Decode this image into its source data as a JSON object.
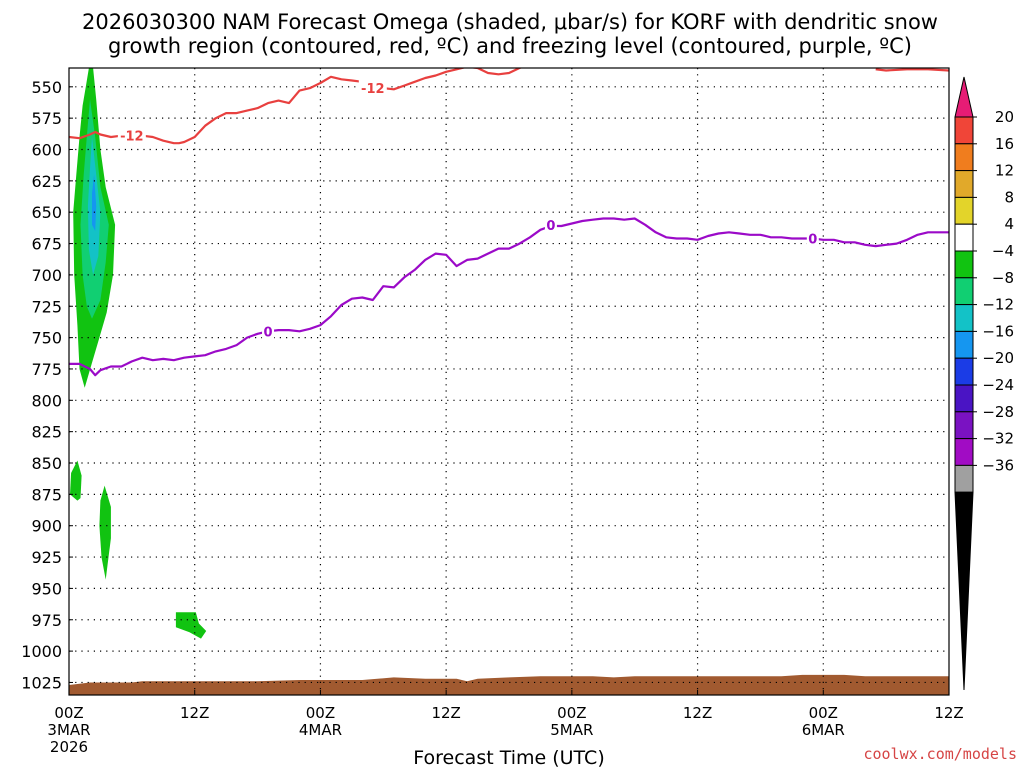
{
  "chart_data": {
    "type": "time-height contour",
    "title_line1": "2026030300 NAM Forecast Omega (shaded, μbar/s) for KORF with dendritic snow",
    "title_line2": "growth region (contoured, red, ºC) and freezing level (contoured, purple, ºC)",
    "xlabel": "Forecast Time (UTC)",
    "credit": "coolwx.com/models",
    "x_range_hours": [
      0,
      84
    ],
    "y_range_hpa": [
      535,
      1035
    ],
    "y_ticks": [
      550,
      575,
      600,
      625,
      650,
      675,
      700,
      725,
      750,
      775,
      800,
      825,
      850,
      875,
      900,
      925,
      950,
      975,
      1000,
      1025
    ],
    "x_ticks": [
      {
        "hour": 0,
        "line1": "00Z",
        "line2": "3MAR",
        "line3": "2026"
      },
      {
        "hour": 12,
        "line1": "12Z",
        "line2": "",
        "line3": ""
      },
      {
        "hour": 24,
        "line1": "00Z",
        "line2": "4MAR",
        "line3": ""
      },
      {
        "hour": 36,
        "line1": "12Z",
        "line2": "",
        "line3": ""
      },
      {
        "hour": 48,
        "line1": "00Z",
        "line2": "5MAR",
        "line3": ""
      },
      {
        "hour": 60,
        "line1": "12Z",
        "line2": "",
        "line3": ""
      },
      {
        "hour": 72,
        "line1": "00Z",
        "line2": "6MAR",
        "line3": ""
      },
      {
        "hour": 84,
        "line1": "12Z",
        "line2": "",
        "line3": ""
      }
    ],
    "grid": "dotted",
    "colorbar": {
      "levels": [
        20,
        16,
        12,
        8,
        4,
        -4,
        -8,
        -12,
        -16,
        -20,
        -24,
        -28,
        -32,
        -36
      ],
      "colors": [
        "#e61c75",
        "#f04538",
        "#f07d1e",
        "#e1a92a",
        "#e3d42a",
        "#ffffff",
        "#11c311",
        "#11cf72",
        "#13c2c7",
        "#1596f0",
        "#1b3ce6",
        "#4a14c4",
        "#7a12c2",
        "#a10cc4",
        "#a0a0a0",
        "#000000"
      ]
    },
    "dendritic_line": {
      "color": "#e8403f",
      "label": "-12",
      "points": [
        [
          0,
          590
        ],
        [
          1,
          591
        ],
        [
          2,
          588
        ],
        [
          2.5,
          586
        ],
        [
          3,
          588
        ],
        [
          4,
          590
        ],
        [
          5,
          589
        ],
        [
          6,
          589
        ],
        [
          7,
          589
        ],
        [
          8,
          590
        ],
        [
          9,
          593
        ],
        [
          10,
          595
        ],
        [
          10.5,
          595
        ],
        [
          11,
          594
        ],
        [
          12,
          590
        ],
        [
          13,
          581
        ],
        [
          14,
          575
        ],
        [
          15,
          571
        ],
        [
          16,
          571
        ],
        [
          17,
          569
        ],
        [
          18,
          567
        ],
        [
          19,
          563
        ],
        [
          20,
          561
        ],
        [
          21,
          563
        ],
        [
          22,
          553
        ],
        [
          23,
          551
        ],
        [
          24,
          547
        ],
        [
          25,
          542
        ],
        [
          26,
          544
        ],
        [
          27,
          545
        ],
        [
          28,
          546
        ],
        [
          29,
          548
        ],
        [
          30,
          551
        ],
        [
          31,
          552
        ],
        [
          32,
          549
        ],
        [
          33,
          546
        ],
        [
          34,
          543
        ],
        [
          35,
          541
        ],
        [
          36,
          538
        ],
        [
          37,
          536
        ],
        [
          38,
          534
        ],
        [
          39,
          535
        ],
        [
          40,
          539
        ],
        [
          41,
          540
        ],
        [
          42,
          539
        ],
        [
          43,
          535
        ],
        [
          44,
          532
        ]
      ],
      "label_positions": [
        [
          6,
          589
        ],
        [
          29,
          551
        ]
      ]
    },
    "dendritic_line_upper_right": {
      "points": [
        [
          77,
          536
        ],
        [
          78,
          537
        ],
        [
          80,
          536
        ],
        [
          82,
          536
        ],
        [
          84,
          537
        ]
      ]
    },
    "freezing_line": {
      "color": "#9b0ac8",
      "label": "0",
      "points": [
        [
          0,
          771
        ],
        [
          1,
          771
        ],
        [
          2,
          775
        ],
        [
          2.5,
          780
        ],
        [
          3,
          776
        ],
        [
          4,
          773
        ],
        [
          5,
          773
        ],
        [
          6,
          769
        ],
        [
          7,
          766
        ],
        [
          8,
          768
        ],
        [
          9,
          767
        ],
        [
          10,
          768
        ],
        [
          11,
          766
        ],
        [
          12,
          765
        ],
        [
          13,
          764
        ],
        [
          14,
          761
        ],
        [
          15,
          759
        ],
        [
          16,
          756
        ],
        [
          17,
          750
        ],
        [
          18,
          747
        ],
        [
          19,
          745
        ],
        [
          20,
          744
        ],
        [
          21,
          744
        ],
        [
          22,
          745
        ],
        [
          23,
          743
        ],
        [
          24,
          740
        ],
        [
          25,
          733
        ],
        [
          26,
          724
        ],
        [
          27,
          719
        ],
        [
          28,
          718
        ],
        [
          29,
          720
        ],
        [
          30,
          709
        ],
        [
          31,
          710
        ],
        [
          32,
          702
        ],
        [
          33,
          696
        ],
        [
          34,
          688
        ],
        [
          35,
          683
        ],
        [
          36,
          684
        ],
        [
          37,
          693
        ],
        [
          38,
          688
        ],
        [
          39,
          687
        ],
        [
          40,
          683
        ],
        [
          41,
          679
        ],
        [
          42,
          679
        ],
        [
          43,
          675
        ],
        [
          44,
          670
        ],
        [
          45,
          664
        ],
        [
          46,
          661
        ],
        [
          47,
          661
        ],
        [
          48,
          659
        ],
        [
          49,
          657
        ],
        [
          50,
          656
        ],
        [
          51,
          655
        ],
        [
          52,
          655
        ],
        [
          53,
          656
        ],
        [
          54,
          655
        ],
        [
          55,
          660
        ],
        [
          56,
          666
        ],
        [
          57,
          670
        ],
        [
          58,
          671
        ],
        [
          59,
          671
        ],
        [
          60,
          672
        ],
        [
          61,
          669
        ],
        [
          62,
          667
        ],
        [
          63,
          666
        ],
        [
          64,
          667
        ],
        [
          65,
          668
        ],
        [
          66,
          668
        ],
        [
          67,
          670
        ],
        [
          68,
          670
        ],
        [
          69,
          671
        ],
        [
          70,
          671
        ],
        [
          71,
          671
        ],
        [
          72,
          672
        ],
        [
          73,
          672
        ],
        [
          74,
          674
        ],
        [
          75,
          674
        ],
        [
          76,
          676
        ],
        [
          77,
          677
        ],
        [
          78,
          676
        ],
        [
          79,
          675
        ],
        [
          80,
          672
        ],
        [
          81,
          668
        ],
        [
          82,
          666
        ],
        [
          83,
          666
        ],
        [
          84,
          666
        ]
      ],
      "label_positions": [
        [
          19,
          745
        ],
        [
          46,
          660
        ],
        [
          71,
          671
        ]
      ]
    },
    "omega_regions": [
      {
        "value_range": [
          -8,
          -4
        ],
        "color": "#11c311",
        "points": [
          [
            1.9,
            535
          ],
          [
            2.3,
            535
          ],
          [
            2.6,
            560
          ],
          [
            3,
            600
          ],
          [
            3.5,
            630
          ],
          [
            4.4,
            660
          ],
          [
            4.2,
            700
          ],
          [
            3.6,
            730
          ],
          [
            2.9,
            750
          ],
          [
            2.2,
            770
          ],
          [
            1.5,
            790
          ],
          [
            1.0,
            775
          ],
          [
            0.8,
            740
          ],
          [
            0.5,
            700
          ],
          [
            0.4,
            650
          ],
          [
            0.7,
            620
          ],
          [
            1.0,
            590
          ],
          [
            1.3,
            565
          ],
          [
            1.6,
            550
          ]
        ]
      },
      {
        "value_range": [
          -12,
          -8
        ],
        "color": "#11cf72",
        "points": [
          [
            2,
            560
          ],
          [
            2.5,
            590
          ],
          [
            3,
            630
          ],
          [
            3.8,
            660
          ],
          [
            3.5,
            690
          ],
          [
            3,
            720
          ],
          [
            2.2,
            735
          ],
          [
            1.7,
            725
          ],
          [
            1.3,
            700
          ],
          [
            1.1,
            660
          ],
          [
            1.4,
            620
          ],
          [
            1.7,
            590
          ]
        ]
      },
      {
        "value_range": [
          -16,
          -12
        ],
        "color": "#13c2c7",
        "points": [
          [
            2.2,
            590
          ],
          [
            2.6,
            620
          ],
          [
            3.0,
            650
          ],
          [
            2.8,
            685
          ],
          [
            2.3,
            700
          ],
          [
            1.9,
            680
          ],
          [
            1.8,
            645
          ],
          [
            2.0,
            615
          ]
        ]
      },
      {
        "value_range": [
          -20,
          -16
        ],
        "color": "#1596f0",
        "points": [
          [
            2.4,
            620
          ],
          [
            2.6,
            645
          ],
          [
            2.5,
            665
          ],
          [
            2.2,
            660
          ],
          [
            2.2,
            635
          ]
        ]
      },
      {
        "value_range": [
          -8,
          -4
        ],
        "color": "#11c311",
        "points": [
          [
            0.2,
            858
          ],
          [
            0.8,
            848
          ],
          [
            1.2,
            860
          ],
          [
            1.1,
            878
          ],
          [
            0.8,
            880
          ],
          [
            0.1,
            875
          ]
        ]
      },
      {
        "value_range": [
          -8,
          -4
        ],
        "color": "#11c311",
        "points": [
          [
            3,
            880
          ],
          [
            3.4,
            868
          ],
          [
            4.0,
            885
          ],
          [
            4.0,
            910
          ],
          [
            3.5,
            943
          ],
          [
            3.1,
            925
          ],
          [
            2.9,
            900
          ]
        ]
      },
      {
        "value_range": [
          -8,
          -4
        ],
        "color": "#11c311",
        "points": [
          [
            10.2,
            969
          ],
          [
            12.1,
            969
          ],
          [
            12.4,
            978
          ],
          [
            13.1,
            984
          ],
          [
            12.6,
            990
          ],
          [
            11.5,
            985
          ],
          [
            10.2,
            981
          ]
        ]
      }
    ],
    "surface": {
      "color": "#a15a30",
      "points": [
        [
          0,
          1027
        ],
        [
          2,
          1025
        ],
        [
          4,
          1025
        ],
        [
          6,
          1025
        ],
        [
          7,
          1024
        ],
        [
          10,
          1024
        ],
        [
          14,
          1024
        ],
        [
          18,
          1024
        ],
        [
          22,
          1023
        ],
        [
          28,
          1023
        ],
        [
          31,
          1021
        ],
        [
          34,
          1022
        ],
        [
          37,
          1022
        ],
        [
          38,
          1024
        ],
        [
          39,
          1022
        ],
        [
          42,
          1021
        ],
        [
          45,
          1020
        ],
        [
          50,
          1020
        ],
        [
          52,
          1021
        ],
        [
          54,
          1020
        ],
        [
          58,
          1020
        ],
        [
          64,
          1020
        ],
        [
          68,
          1020
        ],
        [
          70,
          1019
        ],
        [
          74,
          1019
        ],
        [
          76,
          1020
        ],
        [
          80,
          1020
        ],
        [
          84,
          1020
        ]
      ]
    }
  }
}
